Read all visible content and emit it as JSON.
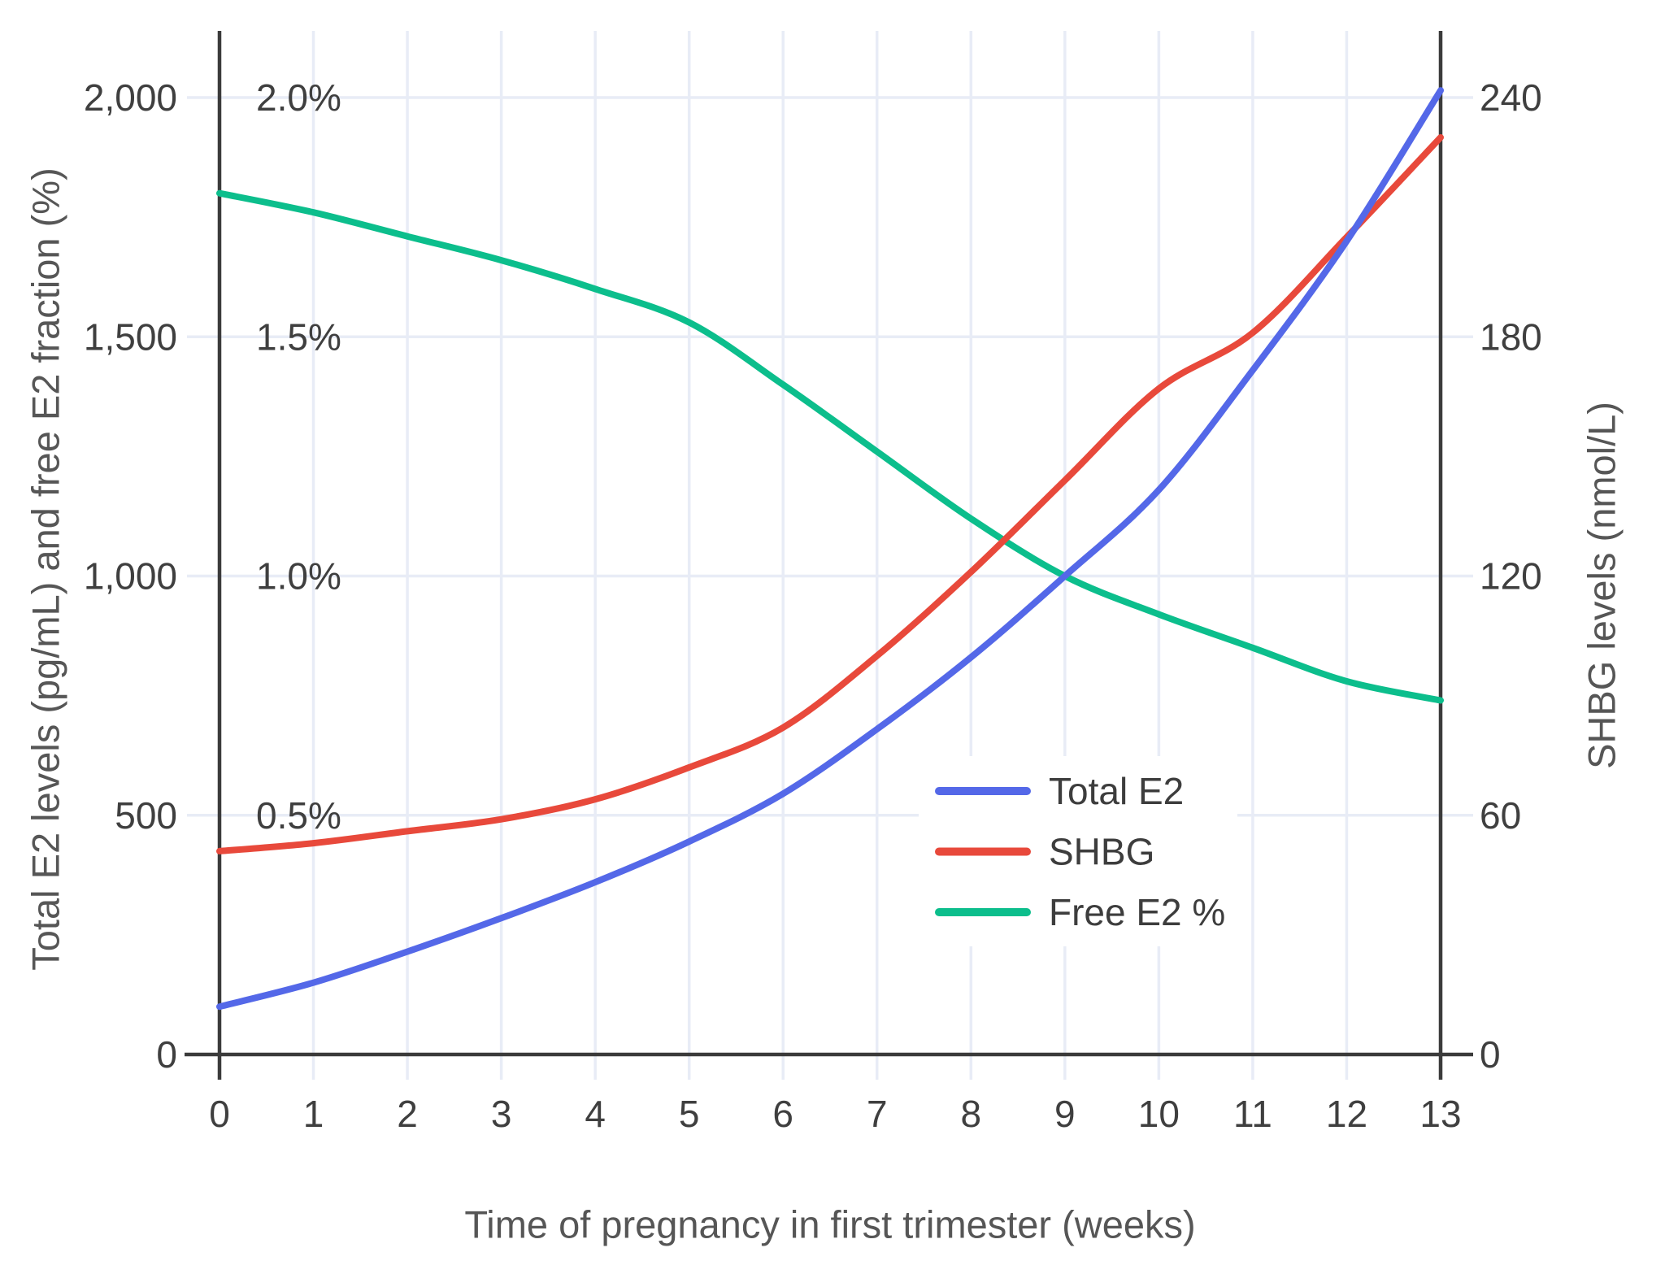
{
  "chart_data": {
    "type": "line",
    "title": "",
    "xlabel": "Time of pregnancy in first trimester (weeks)",
    "ylabel_left": "Total E2 levels (pg/mL) and free E2 fraction (%)",
    "ylabel_right": "SHBG levels (nmol/L)",
    "x": [
      0,
      1,
      2,
      3,
      4,
      5,
      6,
      7,
      8,
      9,
      10,
      11,
      12,
      13
    ],
    "x_tick_labels": [
      "0",
      "1",
      "2",
      "3",
      "4",
      "5",
      "6",
      "7",
      "8",
      "9",
      "10",
      "11",
      "12",
      "13"
    ],
    "left_axis": {
      "tick_labels": [
        "0",
        "500",
        "1,000",
        "1,500",
        "2,000"
      ],
      "tick_values": [
        0,
        500,
        1000,
        1500,
        2000
      ],
      "max": 2000
    },
    "percent_axis": {
      "tick_labels": [
        "0.5%",
        "1.0%",
        "1.5%",
        "2.0%"
      ],
      "tick_values": [
        0.5,
        1.0,
        1.5,
        2.0
      ],
      "max": 2.0
    },
    "right_axis": {
      "tick_labels": [
        "0",
        "60",
        "120",
        "180",
        "240"
      ],
      "tick_values": [
        0,
        60,
        120,
        180,
        240
      ],
      "max": 240
    },
    "series": [
      {
        "name": "Total E2",
        "axis": "left",
        "color": "#5468e8",
        "values": [
          100,
          150,
          215,
          285,
          360,
          445,
          545,
          680,
          830,
          1000,
          1180,
          1430,
          1700,
          2015
        ]
      },
      {
        "name": "SHBG",
        "axis": "right",
        "color": "#e8493b",
        "values": [
          51,
          53,
          56,
          59,
          64,
          72,
          82,
          100,
          121,
          144,
          167,
          181,
          205,
          230
        ]
      },
      {
        "name": "Free E2 %",
        "axis": "percent",
        "color": "#0cbe8c",
        "values": [
          1.8,
          1.76,
          1.71,
          1.66,
          1.6,
          1.53,
          1.4,
          1.26,
          1.12,
          1.0,
          0.92,
          0.85,
          0.78,
          0.74
        ]
      }
    ],
    "legend": {
      "entries": [
        "Total E2",
        "SHBG",
        "Free E2 %"
      ],
      "position": "middle-right",
      "background": "#ffffff"
    },
    "grid": true,
    "x_range": [
      0,
      13
    ],
    "notes": "Right axis 0-240 aligns with left axis 0-2,000 and percent labels 0%-2.0%"
  },
  "colors": {
    "background": "#ffffff",
    "gridline": "#e8ecf6",
    "axis_line": "#3b3b3b",
    "tick_text": "#3f3f3f",
    "title_text": "#565656",
    "legend_text": "#3d3d3d"
  }
}
